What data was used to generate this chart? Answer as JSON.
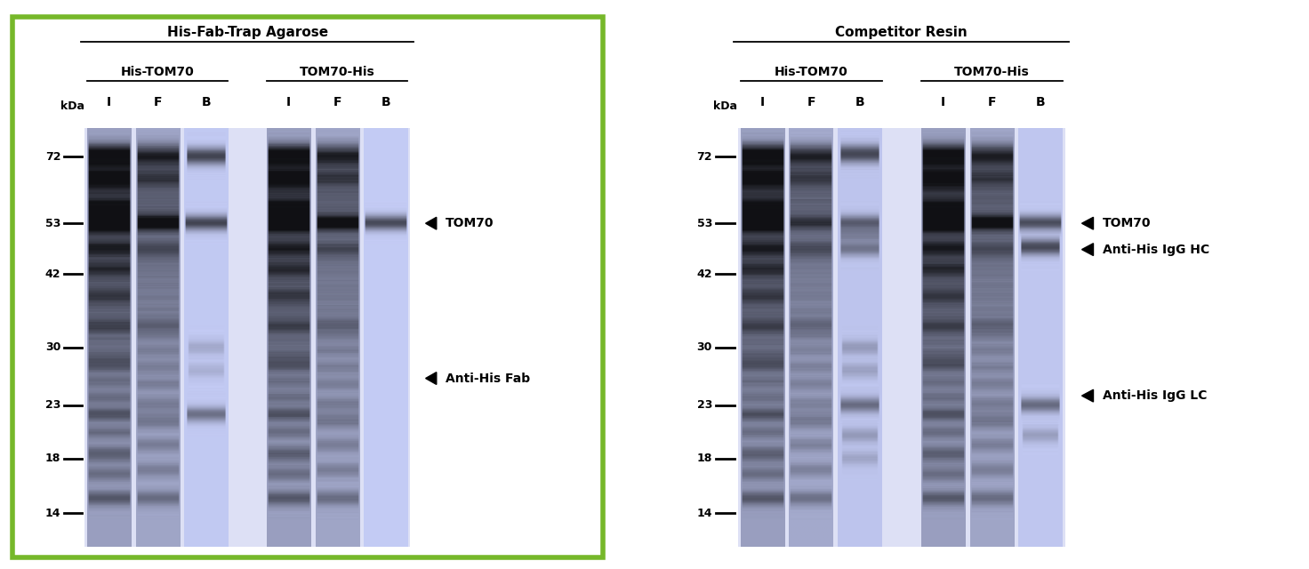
{
  "fig_width": 14.72,
  "fig_height": 6.4,
  "bg_color": "#ffffff",
  "green_border": "#76b82a",
  "gel_bg": "#dde0f5",
  "lane_empty_bg": "#eeeef8",
  "band_dark": "#3a3a99",
  "band_mid": "#6666bb",
  "band_light": "#9999cc",
  "left_panel": {
    "title": "His-Fab-Trap Agarose",
    "group1_label": "His-TOM70",
    "group2_label": "TOM70-His",
    "lane_labels": [
      "I",
      "F",
      "B",
      "I",
      "F",
      "B"
    ],
    "annotations": [
      {
        "text": "TOM70",
        "mw": 53,
        "lane_ref": 5
      },
      {
        "text": "Anti-His Fab",
        "mw": 26,
        "lane_ref": 5
      }
    ]
  },
  "right_panel": {
    "title": "Competitor Resin",
    "group1_label": "His-TOM70",
    "group2_label": "TOM70-His",
    "lane_labels": [
      "I",
      "F",
      "B",
      "I",
      "F",
      "B"
    ],
    "annotations": [
      {
        "text": "TOM70",
        "mw": 53,
        "lane_ref": 5
      },
      {
        "text": "Anti-His IgG HC",
        "mw": 47,
        "lane_ref": 5
      },
      {
        "text": "Anti-His IgG LC",
        "mw": 24,
        "lane_ref": 5
      }
    ]
  },
  "mw_markers": [
    72,
    53,
    42,
    30,
    23,
    18,
    14
  ]
}
